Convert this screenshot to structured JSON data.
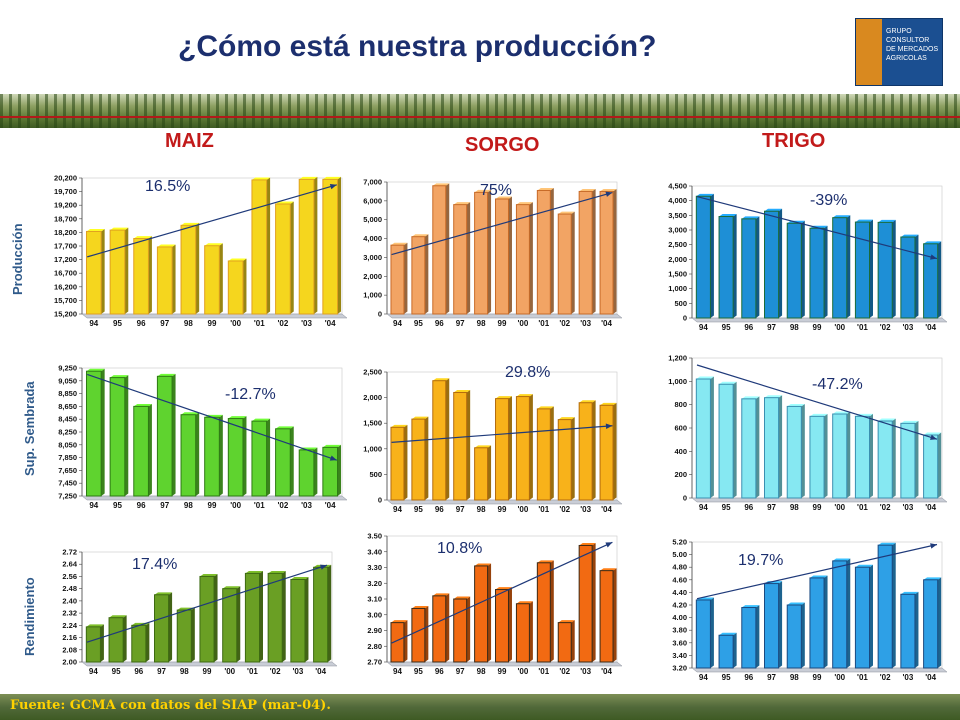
{
  "header": {
    "title": "¿Cómo está nuestra producción?",
    "logo_text": "GRUPO\nCONSULTOR\nDE MERCADOS\nAGRICOLAS"
  },
  "crops": [
    "MAIZ",
    "SORGO",
    "TRIGO"
  ],
  "rows": [
    "Producción",
    "Sup. Sembrada",
    "Rendimiento"
  ],
  "footer": {
    "source": "Fuente: GCMA con datos del SIAP (mar-04)."
  },
  "chart_data": [
    {
      "id": "maiz-prod",
      "type": "bar",
      "row": "Producción",
      "crop": "MAIZ",
      "annotation": "16.5%",
      "categories": [
        "94",
        "95",
        "96",
        "97",
        "98",
        "99",
        "'00",
        "'01",
        "'02",
        "'03",
        "'04"
      ],
      "values": [
        18235,
        18285,
        17975,
        17665,
        18460,
        17710,
        17150,
        20130,
        19245,
        20150,
        20150
      ],
      "ylim": [
        15200,
        20200
      ],
      "yticks": [
        "15,200",
        "15,700",
        "16,200",
        "16,700",
        "17,200",
        "17,700",
        "18,200",
        "18,700",
        "19,200",
        "19,700",
        "20,200"
      ],
      "color": "#f5d61e",
      "border": "#e0a020"
    },
    {
      "id": "sorgo-prod",
      "type": "bar",
      "row": "Producción",
      "crop": "SORGO",
      "annotation": "75%",
      "categories": [
        "94",
        "95",
        "96",
        "97",
        "98",
        "99",
        "'00",
        "'01",
        "'02",
        "'03",
        "'04"
      ],
      "values": [
        3650,
        4100,
        6800,
        5800,
        6450,
        6100,
        5800,
        6550,
        5300,
        6500,
        6500
      ],
      "ylim": [
        0,
        7000
      ],
      "yticks": [
        "0",
        "1,000",
        "2,000",
        "3,000",
        "4,000",
        "5,000",
        "6,000",
        "7,000"
      ],
      "color": "#f2a464",
      "border": "#c76a28"
    },
    {
      "id": "trigo-prod",
      "type": "bar",
      "row": "Producción",
      "crop": "TRIGO",
      "annotation": "-39%",
      "categories": [
        "94",
        "95",
        "96",
        "97",
        "98",
        "99",
        "'00",
        "'01",
        "'02",
        "'03",
        "'04"
      ],
      "values": [
        4150,
        3460,
        3380,
        3640,
        3230,
        3060,
        3420,
        3270,
        3260,
        2760,
        2530
      ],
      "ylim": [
        0,
        4500
      ],
      "yticks": [
        "0",
        "500",
        "1,000",
        "1,500",
        "2,000",
        "2,500",
        "3,000",
        "3,500",
        "4,000",
        "4,500"
      ],
      "color": "#1e8fd6",
      "border": "#1b6b3a"
    },
    {
      "id": "maiz-sup",
      "type": "bar",
      "row": "Sup. Sembrada",
      "crop": "MAIZ",
      "annotation": "-12.7%",
      "categories": [
        "94",
        "95",
        "96",
        "97",
        "98",
        "99",
        "'00",
        "'01",
        "'02",
        "'03",
        "'04"
      ],
      "values": [
        9200,
        9100,
        8650,
        9120,
        8520,
        8480,
        8460,
        8420,
        8300,
        7970,
        8010
      ],
      "ylim": [
        7250,
        9250
      ],
      "yticks": [
        "7,250",
        "7,450",
        "7,650",
        "7,850",
        "8,050",
        "8,250",
        "8,450",
        "8,650",
        "8,850",
        "9,050",
        "9,250"
      ],
      "color": "#5fd32f",
      "border": "#2e7a14"
    },
    {
      "id": "sorgo-sup",
      "type": "bar",
      "row": "Sup. Sembrada",
      "crop": "SORGO",
      "annotation": "29.8%",
      "categories": [
        "94",
        "95",
        "96",
        "97",
        "98",
        "99",
        "'00",
        "'01",
        "'02",
        "'03",
        "'04"
      ],
      "values": [
        1420,
        1580,
        2330,
        2100,
        1020,
        1980,
        2020,
        1780,
        1570,
        1900,
        1850
      ],
      "ylim": [
        0,
        2500
      ],
      "yticks": [
        "0",
        "500",
        "1,000",
        "1,500",
        "2,000",
        "2,500"
      ],
      "color": "#f8b21a",
      "border": "#b36b0d"
    },
    {
      "id": "trigo-sup",
      "type": "bar",
      "row": "Sup. Sembrada",
      "crop": "TRIGO",
      "annotation": "-47.2%",
      "categories": [
        "94",
        "95",
        "96",
        "97",
        "98",
        "99",
        "'00",
        "'01",
        "'02",
        "'03",
        "'04"
      ],
      "values": [
        1020,
        975,
        850,
        860,
        785,
        700,
        720,
        700,
        660,
        640,
        540
      ],
      "ylim": [
        0,
        1200
      ],
      "yticks": [
        "0",
        "200",
        "400",
        "600",
        "800",
        "1,000",
        "1,200"
      ],
      "color": "#86e8f2",
      "border": "#3a8fb0"
    },
    {
      "id": "maiz-rend",
      "type": "bar",
      "row": "Rendimiento",
      "crop": "MAIZ",
      "annotation": "17.4%",
      "categories": [
        "94",
        "95",
        "96",
        "97",
        "98",
        "99",
        "'00",
        "'01",
        "'02",
        "'03",
        "'04"
      ],
      "values": [
        2.23,
        2.29,
        2.24,
        2.44,
        2.34,
        2.56,
        2.48,
        2.58,
        2.58,
        2.54,
        2.62
      ],
      "ylim": [
        2.0,
        2.72
      ],
      "yticks": [
        "2.00",
        "2.08",
        "2.16",
        "2.24",
        "2.32",
        "2.40",
        "2.48",
        "2.56",
        "2.64",
        "2.72"
      ],
      "color": "#6a9f24",
      "border": "#3d6a12"
    },
    {
      "id": "sorgo-rend",
      "type": "bar",
      "row": "Rendimiento",
      "crop": "SORGO",
      "annotation": "10.8%",
      "categories": [
        "94",
        "95",
        "96",
        "97",
        "98",
        "99",
        "'00",
        "'01",
        "'02",
        "'03",
        "'04"
      ],
      "values": [
        2.95,
        3.04,
        3.12,
        3.1,
        3.31,
        3.16,
        3.07,
        3.33,
        2.95,
        3.44,
        3.28
      ],
      "ylim": [
        2.7,
        3.5
      ],
      "yticks": [
        "2.70",
        "2.80",
        "2.90",
        "3.00",
        "3.10",
        "3.20",
        "3.30",
        "3.40",
        "3.50"
      ],
      "color": "#f26a12",
      "border": "#3a2a18"
    },
    {
      "id": "trigo-rend",
      "type": "bar",
      "row": "Rendimiento",
      "crop": "TRIGO",
      "annotation": "19.7%",
      "categories": [
        "94",
        "95",
        "96",
        "97",
        "98",
        "99",
        "'00",
        "'01",
        "'02",
        "'03",
        "'04"
      ],
      "values": [
        4.28,
        3.72,
        4.16,
        4.54,
        4.2,
        4.63,
        4.9,
        4.8,
        5.15,
        4.37,
        4.6
      ],
      "ylim": [
        3.2,
        5.2
      ],
      "yticks": [
        "3.20",
        "3.40",
        "3.60",
        "3.80",
        "4.00",
        "4.20",
        "4.40",
        "4.60",
        "4.80",
        "5.00",
        "5.20"
      ],
      "color": "#2ea0e6",
      "border": "#1a4a80"
    }
  ]
}
